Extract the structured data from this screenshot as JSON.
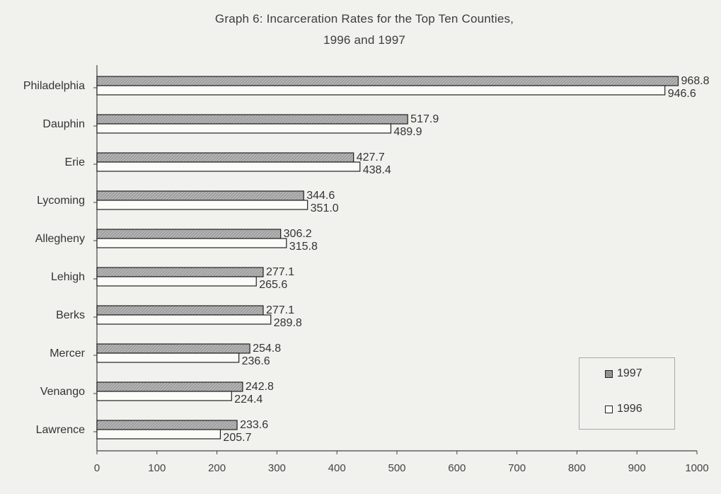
{
  "chart_data": {
    "type": "bar",
    "orientation": "horizontal",
    "title": "Graph 6: Incarceration Rates for the Top Ten Counties,",
    "subtitle": "1996 and 1997",
    "categories": [
      "Philadelphia",
      "Dauphin",
      "Erie",
      "Lycoming",
      "Allegheny",
      "Lehigh",
      "Berks",
      "Mercer",
      "Venango",
      "Lawrence"
    ],
    "series": [
      {
        "name": "1997",
        "values": [
          968.8,
          517.9,
          427.7,
          344.6,
          306.2,
          277.1,
          277.1,
          254.8,
          242.8,
          233.6
        ],
        "labels": [
          "968.8",
          "517.9",
          "427.7",
          "344.6",
          "306.2",
          "277.1",
          "277.1",
          "254.8",
          "242.8",
          "233.6"
        ],
        "color": "#a6a6a6",
        "pattern": "hatched"
      },
      {
        "name": "1996",
        "values": [
          946.6,
          489.9,
          438.4,
          351.0,
          315.8,
          265.6,
          289.8,
          236.6,
          224.4,
          205.7
        ],
        "labels": [
          "946.6",
          "489.9",
          "438.4",
          "351.0",
          "315.8",
          "265.6",
          "289.8",
          "236.6",
          "224.4",
          "205.7"
        ],
        "color": "#fbfbf8",
        "pattern": "solid"
      }
    ],
    "xlim": [
      0,
      1000
    ],
    "x_ticks": [
      0,
      100,
      200,
      300,
      400,
      500,
      600,
      700,
      800,
      900,
      1000
    ],
    "grid": false,
    "legend_position": "bottom-right"
  },
  "legend": {
    "item_1997": "1997",
    "item_1996": "1996"
  }
}
